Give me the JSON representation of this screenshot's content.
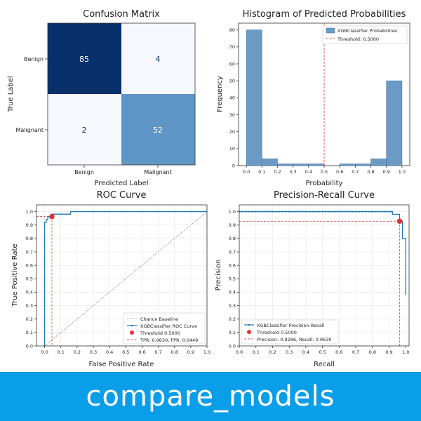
{
  "banner": {
    "text": "compare_models"
  },
  "chart_data": [
    {
      "type": "heatmap",
      "title": "Confusion Matrix",
      "xlabel": "Predicted Label",
      "ylabel": "True Label",
      "x_categories": [
        "Benign",
        "Malignant"
      ],
      "y_categories": [
        "Benign",
        "Malignant"
      ],
      "values": [
        [
          85,
          4
        ],
        [
          2,
          52
        ]
      ],
      "colors": {
        "dark": "#08306b",
        "light": "#f7fbff",
        "mid": "#6096c6"
      }
    },
    {
      "type": "bar",
      "title": "Histogram of Predicted Probabilities",
      "xlabel": "Probability",
      "ylabel": "Frequency",
      "bin_edges": [
        0.0,
        0.1,
        0.2,
        0.3,
        0.4,
        0.5,
        0.6,
        0.7,
        0.8,
        0.9,
        1.0
      ],
      "values": [
        80,
        4,
        1,
        1,
        1,
        0,
        1,
        1,
        4,
        50
      ],
      "xlim": [
        -0.05,
        1.05
      ],
      "ylim": [
        0,
        84
      ],
      "xticks": [
        "0.0",
        "0.1",
        "0.2",
        "0.3",
        "0.4",
        "0.5",
        "0.6",
        "0.7",
        "0.8",
        "0.9",
        "1.0"
      ],
      "yticks": [
        "0",
        "10",
        "20",
        "30",
        "40",
        "50",
        "60",
        "70",
        "80"
      ],
      "threshold": 0.5,
      "legend": [
        "XGBClassifier Probabilities",
        "Threshold: 0.5000"
      ],
      "legend_position": "top-right",
      "colors": {
        "bar": "#6b9ac4",
        "threshold": "#d62728"
      }
    },
    {
      "type": "line",
      "title": "ROC Curve",
      "xlabel": "False Positive Rate",
      "ylabel": "True Positive Rate",
      "xlim": [
        -0.05,
        1.0
      ],
      "ylim": [
        0,
        1.05
      ],
      "xticks": [
        "0.0",
        "0.1",
        "0.2",
        "0.3",
        "0.4",
        "0.5",
        "0.6",
        "0.7",
        "0.8",
        "0.9",
        "1.0"
      ],
      "yticks": [
        "0.0",
        "0.1",
        "0.2",
        "0.3",
        "0.4",
        "0.5",
        "0.6",
        "0.7",
        "0.8",
        "0.9",
        "1.0"
      ],
      "grid": true,
      "series": [
        {
          "name": "XGBClassifier ROC Curve",
          "x": [
            0.0,
            0.0,
            0.0,
            0.01,
            0.01,
            0.02,
            0.02,
            0.045,
            0.045,
            0.16,
            0.16,
            1.0
          ],
          "y": [
            0.0,
            0.01,
            0.92,
            0.92,
            0.94,
            0.94,
            0.963,
            0.963,
            0.981,
            0.981,
            1.0,
            1.0
          ]
        }
      ],
      "chance_line": {
        "name": "Chance Baseline",
        "x": [
          0,
          1
        ],
        "y": [
          0,
          1
        ]
      },
      "threshold_point": {
        "name": "Threshold 0.5000",
        "x": 0.0449,
        "y": 0.963
      },
      "threshold_label": "TPR: 0.9630, FPR: 0.0449",
      "legend_position": "bottom-right",
      "colors": {
        "curve": "#1f77b4",
        "chance": "#7f7f7f",
        "threshold": "#d62728"
      }
    },
    {
      "type": "line",
      "title": "Precision-Recall Curve",
      "xlabel": "Recall",
      "ylabel": "Precision",
      "xlim": [
        0,
        1.02
      ],
      "ylim": [
        0,
        1.05
      ],
      "xticks": [
        "0.0",
        "0.1",
        "0.2",
        "0.3",
        "0.4",
        "0.5",
        "0.6",
        "0.7",
        "0.8",
        "0.9",
        "1.0"
      ],
      "yticks": [
        "0.0",
        "0.1",
        "0.2",
        "0.3",
        "0.4",
        "0.5",
        "0.6",
        "0.7",
        "0.8",
        "0.9",
        "1.0"
      ],
      "grid": true,
      "series": [
        {
          "name": "XGBClassifier Precision-Recall",
          "x": [
            0.0,
            0.92,
            0.92,
            0.963,
            0.963,
            0.98,
            0.98,
            1.0,
            1.0
          ],
          "y": [
            1.0,
            1.0,
            0.98,
            0.98,
            0.93,
            0.93,
            0.8,
            0.8,
            0.38
          ]
        }
      ],
      "threshold_point": {
        "name": "Threshold 0.5000",
        "x": 0.963,
        "y": 0.9286
      },
      "threshold_label": "Precision: 0.9286, Recall: 0.9630",
      "legend_position": "bottom-left",
      "colors": {
        "curve": "#1f77b4",
        "threshold": "#d62728"
      }
    }
  ]
}
